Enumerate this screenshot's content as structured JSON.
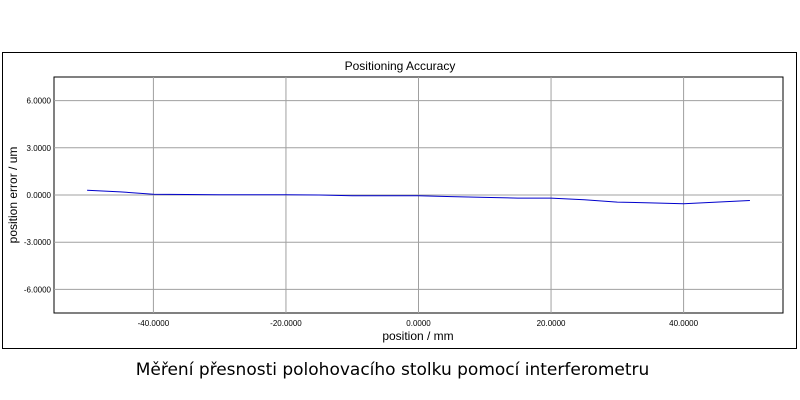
{
  "chart_data": {
    "type": "line",
    "title": "Positioning Accuracy",
    "xlabel": "position / mm",
    "ylabel": "position error / um",
    "xlim": [
      -55,
      55
    ],
    "ylim": [
      -7.5,
      7.5
    ],
    "x_ticks": [
      -40,
      -20,
      0,
      20,
      40
    ],
    "x_tick_labels": [
      "-40.0000",
      "-20.0000",
      "0.0000",
      "20.0000",
      "40.0000"
    ],
    "y_ticks": [
      6,
      3,
      0,
      -3,
      -6
    ],
    "y_tick_labels": [
      "6.0000",
      "3.0000",
      "0.0000",
      "-3.0000",
      "-6.0000"
    ],
    "grid": true,
    "line_color": "#0000cc",
    "series": [
      {
        "x": [
          -50,
          -45,
          -40,
          -35,
          -30,
          -25,
          -20,
          -15,
          -10,
          -5,
          0,
          5,
          10,
          15,
          20,
          25,
          30,
          35,
          40,
          45,
          50
        ],
        "y": [
          0.3,
          0.2,
          0.05,
          0.03,
          0.02,
          0.02,
          0.02,
          0.0,
          -0.05,
          -0.05,
          -0.05,
          -0.1,
          -0.15,
          -0.2,
          -0.2,
          -0.3,
          -0.45,
          -0.5,
          -0.55,
          -0.45,
          -0.35
        ]
      }
    ]
  },
  "caption": "Měření přesnosti polohovacího stolku pomocí interferometru"
}
